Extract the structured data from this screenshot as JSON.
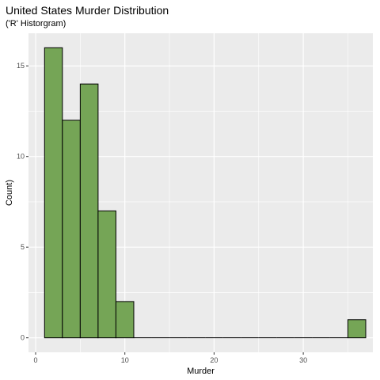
{
  "chart_data": {
    "type": "bar",
    "title": "United States Murder Distribution",
    "subtitle": "('R' Historgram)",
    "xlabel": "Murder",
    "ylabel": "Count)",
    "bins": [
      {
        "x0": 1.0,
        "x1": 3.0,
        "count": 16
      },
      {
        "x0": 3.0,
        "x1": 5.0,
        "count": 12
      },
      {
        "x0": 5.0,
        "x1": 7.0,
        "count": 14
      },
      {
        "x0": 7.0,
        "x1": 9.0,
        "count": 7
      },
      {
        "x0": 9.0,
        "x1": 11.0,
        "count": 2
      },
      {
        "x0": 11.0,
        "x1": 13.0,
        "count": 0
      },
      {
        "x0": 13.0,
        "x1": 15.0,
        "count": 0
      },
      {
        "x0": 15.0,
        "x1": 17.0,
        "count": 0
      },
      {
        "x0": 17.0,
        "x1": 19.0,
        "count": 0
      },
      {
        "x0": 19.0,
        "x1": 21.0,
        "count": 0
      },
      {
        "x0": 21.0,
        "x1": 23.0,
        "count": 0
      },
      {
        "x0": 23.0,
        "x1": 25.0,
        "count": 0
      },
      {
        "x0": 25.0,
        "x1": 27.0,
        "count": 0
      },
      {
        "x0": 27.0,
        "x1": 29.0,
        "count": 0
      },
      {
        "x0": 29.0,
        "x1": 31.0,
        "count": 0
      },
      {
        "x0": 31.0,
        "x1": 33.0,
        "count": 0
      },
      {
        "x0": 33.0,
        "x1": 35.0,
        "count": 0
      },
      {
        "x0": 35.0,
        "x1": 37.0,
        "count": 1
      }
    ],
    "x_ticks": [
      0,
      10,
      20,
      30
    ],
    "y_ticks": [
      0,
      5,
      10,
      15
    ],
    "xlim": [
      -0.8,
      37.8
    ],
    "ylim": [
      -0.8,
      16.8
    ],
    "grid": true,
    "colors": {
      "bar_fill": "#75A556",
      "bar_stroke": "#000000",
      "panel_bg": "#EBEBEB",
      "grid_major": "#FFFFFF"
    }
  }
}
